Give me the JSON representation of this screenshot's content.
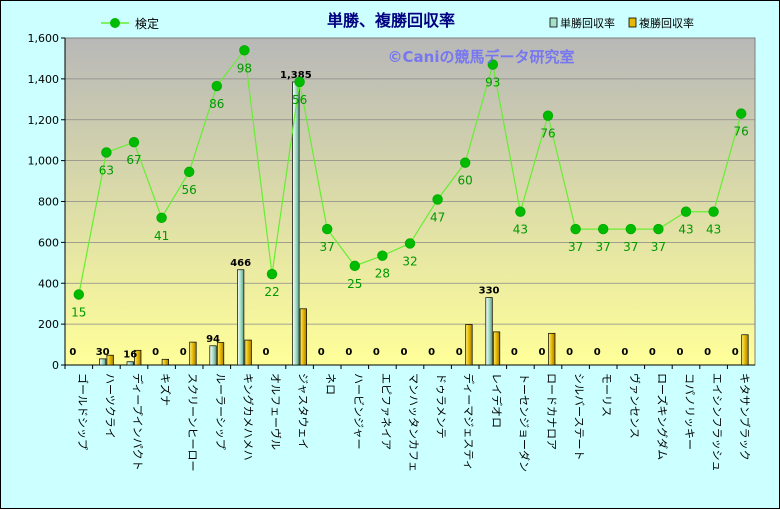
{
  "chart_data": {
    "type": "bar+line",
    "title": "単勝、複勝回収率",
    "watermark": "©Caniの競馬データ研究室",
    "ylim": [
      0,
      1600
    ],
    "yticks": [
      "0",
      "200",
      "400",
      "600",
      "800",
      "1,000",
      "1,200",
      "1,400",
      "1,600"
    ],
    "categories": [
      "ゴールドシップ",
      "ハーツクライ",
      "ディープインパクト",
      "キズナ",
      "スクリーンヒーロー",
      "ルーラーシップ",
      "キングカメハメハ",
      "オルフェーヴル",
      "ジャスタウェイ",
      "ネロ",
      "ハービンジャー",
      "エピファネイア",
      "マンハッタンカフェ",
      "ドゥラメンテ",
      "ディーマジェスティ",
      "レイデオロ",
      "トーセンジョーダン",
      "ロードカナロア",
      "シルバーステート",
      "モーリス",
      "ヴァンセンス",
      "ローズキングダム",
      "コパノリッキー",
      "エイシンフラッシュ",
      "キタサンブラック"
    ],
    "legend": {
      "line": "検定",
      "bar1": "単勝回収率",
      "bar2": "複勝回収率"
    },
    "series": [
      {
        "name": "検定",
        "kind": "line",
        "values": [
          345,
          1040,
          1090,
          720,
          945,
          1365,
          1540,
          445,
          1385,
          665,
          485,
          535,
          595,
          810,
          990,
          1470,
          750,
          1220,
          665,
          665,
          665,
          665,
          750,
          750,
          1230
        ],
        "labels": [
          "15",
          "63",
          "67",
          "41",
          "56",
          "86",
          "98",
          "22",
          "56",
          "37",
          "25",
          "28",
          "32",
          "47",
          "60",
          "93",
          "43",
          "76",
          "37",
          "37",
          "37",
          "37",
          "43",
          "43",
          "76"
        ]
      },
      {
        "name": "単勝回収率",
        "kind": "bar",
        "values": [
          0,
          30,
          16,
          0,
          0,
          94,
          466,
          0,
          1385,
          0,
          0,
          0,
          0,
          0,
          0,
          330,
          0,
          0,
          0,
          0,
          0,
          0,
          0,
          0,
          0
        ],
        "labels": [
          "0",
          "30",
          "16",
          "0",
          "0",
          "94",
          "466",
          "0",
          "1,385",
          "0",
          "0",
          "0",
          "0",
          "0",
          "0",
          "330",
          "0",
          "0",
          "0",
          "0",
          "0",
          "0",
          "0",
          "0",
          "0"
        ]
      },
      {
        "name": "複勝回収率",
        "kind": "bar",
        "values": [
          0,
          48,
          72,
          28,
          112,
          110,
          122,
          0,
          275,
          0,
          0,
          0,
          0,
          0,
          198,
          162,
          0,
          155,
          0,
          0,
          0,
          0,
          0,
          0,
          148
        ]
      }
    ],
    "colors": {
      "plot_top": "#b8b8b8",
      "plot_bottom": "#ffff99",
      "bar1": "#a6e0c8",
      "bar2": "#e6b800",
      "line": "#66ee33",
      "marker": "#00bb00",
      "title": "#000080",
      "watermark": "#6666ff",
      "outer_bg": "#ccffff"
    }
  }
}
